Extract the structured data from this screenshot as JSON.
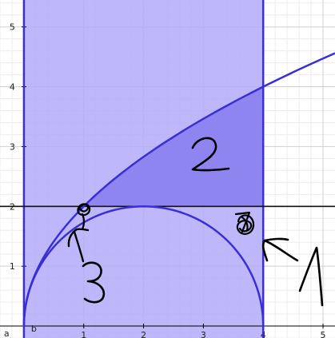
{
  "chart_data": {
    "type": "area",
    "title": "",
    "xlabel": "",
    "ylabel": "",
    "xlim": [
      -0.4,
      5.2
    ],
    "ylim": [
      -0.2,
      5.45
    ],
    "grid": true,
    "x_ticks": [
      "1",
      "2",
      "3",
      "4",
      "5"
    ],
    "y_ticks": [
      "1",
      "2",
      "3",
      "4",
      "5"
    ],
    "curves": [
      {
        "expr": "y = 2*sqrt(x)",
        "samples": [
          [
            0,
            0
          ],
          [
            0.25,
            1.0
          ],
          [
            1,
            2.0
          ],
          [
            2,
            2.83
          ],
          [
            3,
            3.46
          ],
          [
            4,
            4.0
          ],
          [
            5,
            4.47
          ],
          [
            5.2,
            4.56
          ]
        ]
      },
      {
        "expr": "(x-2)^2 + y^2 = 4, y >= 0",
        "center": [
          2,
          0
        ],
        "radius": 2
      },
      {
        "expr": "y = 2",
        "samples": [
          [
            -0.4,
            2
          ],
          [
            5.2,
            2
          ]
        ]
      }
    ],
    "vertical_lines": [
      0,
      4
    ],
    "shaded_strip": {
      "x_from": 0,
      "x_to": 4
    },
    "shaded_between": {
      "upper": "y = 2*sqrt(x)",
      "lower": "y = 2",
      "x_from": 1,
      "x_to": 4
    },
    "point_labels": [
      "a",
      "b"
    ],
    "annotations": [
      "2",
      "3",
      "1"
    ],
    "colors": {
      "strip": "#b3acf9",
      "region_between": "#8a80ee",
      "curve": "#3a2fd6",
      "horizontal_line": "#111111",
      "grid_major": "#cfcfcf",
      "grid_minor": "#ececec",
      "axis": "#000000",
      "ink": "#000000"
    }
  }
}
